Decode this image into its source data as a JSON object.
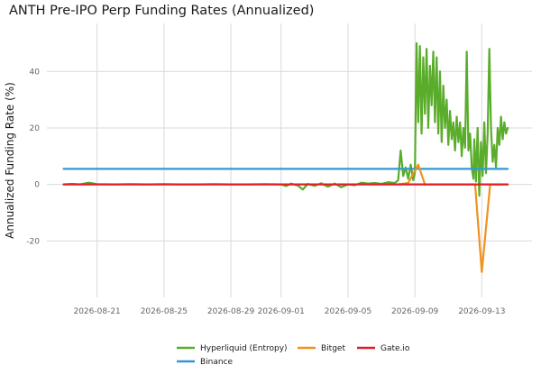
{
  "chart_data": {
    "type": "line",
    "title": "ANTH Pre-IPO Perp Funding Rates (Annualized)",
    "xlabel": "",
    "ylabel": "Annualized Funding Rate (%)",
    "x_ticks": [
      "2026-08-21",
      "2026-08-25",
      "2026-08-29",
      "2026-09-01",
      "2026-09-05",
      "2026-09-09",
      "2026-09-13"
    ],
    "xlim": [
      "2026-08-18",
      "2026-09-16"
    ],
    "y_ticks": [
      -20,
      0,
      20,
      40
    ],
    "ylim": [
      -40,
      57
    ],
    "grid": true,
    "legend_position": "bottom",
    "series": [
      {
        "name": "Hyperliquid (Entropy)",
        "color": "#5aac2b",
        "points": [
          [
            "2026-08-19",
            0.0
          ],
          [
            "2026-08-19.5",
            0.2
          ],
          [
            "2026-08-20",
            0.0
          ],
          [
            "2026-08-20.5",
            0.6
          ],
          [
            "2026-08-21",
            0.1
          ],
          [
            "2026-08-22",
            0.0
          ],
          [
            "2026-08-23",
            0.1
          ],
          [
            "2026-08-24",
            0.0
          ],
          [
            "2026-08-25",
            0.1
          ],
          [
            "2026-08-26",
            0.0
          ],
          [
            "2026-08-27",
            0.0
          ],
          [
            "2026-08-28",
            0.1
          ],
          [
            "2026-08-29",
            0.0
          ],
          [
            "2026-08-30",
            0.0
          ],
          [
            "2026-08-31",
            0.1
          ],
          [
            "2026-09-01",
            0.0
          ],
          [
            "2026-09-01.3",
            -0.6
          ],
          [
            "2026-09-01.6",
            0.3
          ],
          [
            "2026-09-02",
            -0.4
          ],
          [
            "2026-09-02.3",
            -1.8
          ],
          [
            "2026-09-02.6",
            0.2
          ],
          [
            "2026-09-03",
            -0.5
          ],
          [
            "2026-09-03.4",
            0.4
          ],
          [
            "2026-09-03.8",
            -0.8
          ],
          [
            "2026-09-04.2",
            0.3
          ],
          [
            "2026-09-04.6",
            -1.0
          ],
          [
            "2026-09-05",
            0.0
          ],
          [
            "2026-09-05.4",
            -0.3
          ],
          [
            "2026-09-05.8",
            0.6
          ],
          [
            "2026-09-06.2",
            0.3
          ],
          [
            "2026-09-06.6",
            0.5
          ],
          [
            "2026-09-07",
            0.2
          ],
          [
            "2026-09-07.4",
            0.8
          ],
          [
            "2026-09-07.8",
            0.5
          ],
          [
            "2026-09-08",
            1.5
          ],
          [
            "2026-09-08.15",
            12.0
          ],
          [
            "2026-09-08.3",
            3.0
          ],
          [
            "2026-09-08.45",
            6.0
          ],
          [
            "2026-09-08.6",
            2.0
          ],
          [
            "2026-09-08.75",
            7.0
          ],
          [
            "2026-09-08.9",
            1.5
          ],
          [
            "2026-09-09.0",
            4.0
          ],
          [
            "2026-09-09.1",
            50.0
          ],
          [
            "2026-09-09.2",
            22.0
          ],
          [
            "2026-09-09.3",
            49.0
          ],
          [
            "2026-09-09.4",
            18.0
          ],
          [
            "2026-09-09.5",
            45.0
          ],
          [
            "2026-09-09.6",
            25.0
          ],
          [
            "2026-09-09.7",
            48.0
          ],
          [
            "2026-09-09.8",
            20.0
          ],
          [
            "2026-09-09.9",
            42.0
          ],
          [
            "2026-09-10.0",
            28.0
          ],
          [
            "2026-09-10.1",
            47.0
          ],
          [
            "2026-09-10.2",
            22.0
          ],
          [
            "2026-09-10.3",
            45.0
          ],
          [
            "2026-09-10.4",
            18.0
          ],
          [
            "2026-09-10.5",
            40.0
          ],
          [
            "2026-09-10.6",
            15.0
          ],
          [
            "2026-09-10.7",
            35.0
          ],
          [
            "2026-09-10.8",
            20.0
          ],
          [
            "2026-09-10.9",
            30.0
          ],
          [
            "2026-09-11.0",
            14.0
          ],
          [
            "2026-09-11.1",
            26.0
          ],
          [
            "2026-09-11.2",
            16.0
          ],
          [
            "2026-09-11.3",
            22.0
          ],
          [
            "2026-09-11.4",
            12.0
          ],
          [
            "2026-09-11.5",
            24.0
          ],
          [
            "2026-09-11.6",
            15.0
          ],
          [
            "2026-09-11.7",
            22.0
          ],
          [
            "2026-09-11.8",
            10.0
          ],
          [
            "2026-09-11.9",
            20.0
          ],
          [
            "2026-09-12.0",
            13.0
          ],
          [
            "2026-09-12.1",
            47.0
          ],
          [
            "2026-09-12.2",
            12.0
          ],
          [
            "2026-09-12.3",
            18.0
          ],
          [
            "2026-09-12.4",
            6.0
          ],
          [
            "2026-09-12.5",
            2.0
          ],
          [
            "2026-09-12.55",
            16.0
          ],
          [
            "2026-09-12.65",
            1.0
          ],
          [
            "2026-09-12.75",
            20.0
          ],
          [
            "2026-09-12.85",
            -4.0
          ],
          [
            "2026-09-12.95",
            15.0
          ],
          [
            "2026-09-13.05",
            3.0
          ],
          [
            "2026-09-13.15",
            22.0
          ],
          [
            "2026-09-13.25",
            4.0
          ],
          [
            "2026-09-13.35",
            18.0
          ],
          [
            "2026-09-13.45",
            48.0
          ],
          [
            "2026-09-13.55",
            20.0
          ],
          [
            "2026-09-13.65",
            8.0
          ],
          [
            "2026-09-13.75",
            14.0
          ],
          [
            "2026-09-13.85",
            6.0
          ],
          [
            "2026-09-13.95",
            20.0
          ],
          [
            "2026-09-14.05",
            14.0
          ],
          [
            "2026-09-14.15",
            24.0
          ],
          [
            "2026-09-14.25",
            16.0
          ],
          [
            "2026-09-14.35",
            22.0
          ],
          [
            "2026-09-14.45",
            18.0
          ],
          [
            "2026-09-14.55",
            20.0
          ]
        ]
      },
      {
        "name": "Binance",
        "color": "#3497d4",
        "points": [
          [
            "2026-08-19",
            5.5
          ],
          [
            "2026-09-14.55",
            5.5
          ]
        ]
      },
      {
        "name": "Bitget",
        "color": "#f0921e",
        "points": [
          [
            "2026-09-08.0",
            0.0
          ],
          [
            "2026-09-08.6",
            0.5
          ],
          [
            "2026-09-09.2",
            7.0
          ],
          [
            "2026-09-09.6",
            0.0
          ],
          [
            "2026-09-12.6",
            0.0
          ],
          [
            "2026-09-13.0",
            -31.0
          ],
          [
            "2026-09-13.5",
            0.0
          ],
          [
            "2026-09-14.55",
            0.0
          ]
        ]
      },
      {
        "name": "Gate.io",
        "color": "#e01e24",
        "points": [
          [
            "2026-08-19",
            0.0
          ],
          [
            "2026-09-14.55",
            0.0
          ]
        ]
      }
    ]
  }
}
